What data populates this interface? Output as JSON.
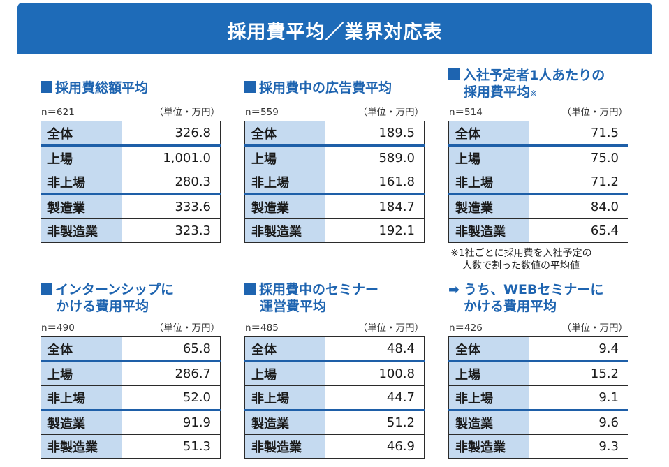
{
  "title": "採用費平均／業界対応表",
  "unit_label": "（単位・万円）",
  "panels": [
    {
      "title_line1": "採用費総額平均",
      "n_label": "n＝621",
      "rows": [
        {
          "label": "全体",
          "value": "326.8"
        },
        {
          "label": "上場",
          "value": "1,001.0"
        },
        {
          "label": "非上場",
          "value": "280.3"
        },
        {
          "label": "製造業",
          "value": "333.6"
        },
        {
          "label": "非製造業",
          "value": "323.3"
        }
      ]
    },
    {
      "title_line1": "採用費中の広告費平均",
      "n_label": "n＝559",
      "rows": [
        {
          "label": "全体",
          "value": "189.5"
        },
        {
          "label": "上場",
          "value": "589.0"
        },
        {
          "label": "非上場",
          "value": "161.8"
        },
        {
          "label": "製造業",
          "value": "184.7"
        },
        {
          "label": "非製造業",
          "value": "192.1"
        }
      ]
    },
    {
      "title_line1": "入社予定者1人あたりの",
      "title_line2": "採用費平均",
      "note_mark": "※",
      "n_label": "n＝514",
      "rows": [
        {
          "label": "全体",
          "value": "71.5"
        },
        {
          "label": "上場",
          "value": "75.0"
        },
        {
          "label": "非上場",
          "value": "71.2"
        },
        {
          "label": "製造業",
          "value": "84.0"
        },
        {
          "label": "非製造業",
          "value": "65.4"
        }
      ]
    },
    {
      "title_line1": "インターンシップに",
      "title_line2": "かける費用平均",
      "n_label": "n＝490",
      "rows": [
        {
          "label": "全体",
          "value": "65.8"
        },
        {
          "label": "上場",
          "value": "286.7"
        },
        {
          "label": "非上場",
          "value": "52.0"
        },
        {
          "label": "製造業",
          "value": "91.9"
        },
        {
          "label": "非製造業",
          "value": "51.3"
        }
      ]
    },
    {
      "title_line1": "採用費中のセミナー",
      "title_line2": "運営費平均",
      "n_label": "n＝485",
      "rows": [
        {
          "label": "全体",
          "value": "48.4"
        },
        {
          "label": "上場",
          "value": "100.8"
        },
        {
          "label": "非上場",
          "value": "44.7"
        },
        {
          "label": "製造業",
          "value": "51.2"
        },
        {
          "label": "非製造業",
          "value": "46.9"
        }
      ]
    },
    {
      "title_line1": "うち、WEBセミナーに",
      "title_line2": "かける費用平均",
      "n_label": "n＝426",
      "rows": [
        {
          "label": "全体",
          "value": "9.4"
        },
        {
          "label": "上場",
          "value": "15.2"
        },
        {
          "label": "非上場",
          "value": "9.1"
        },
        {
          "label": "製造業",
          "value": "9.6"
        },
        {
          "label": "非製造業",
          "value": "9.3"
        }
      ]
    }
  ],
  "footnote": {
    "line1": "※1社ごとに採用費を入社予定の",
    "line2": "人数で割った数値の平均値"
  }
}
